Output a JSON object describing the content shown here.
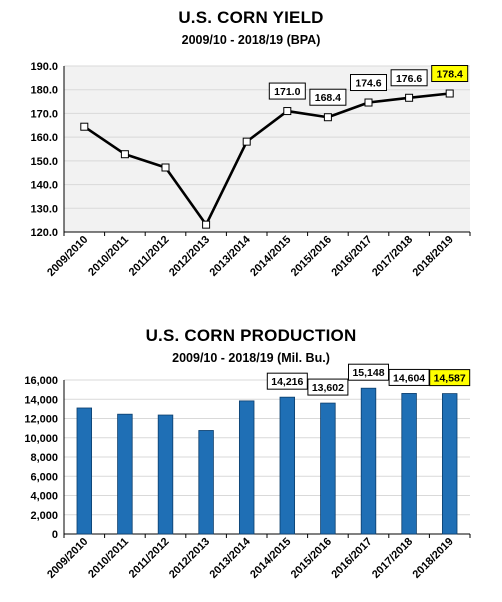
{
  "chart_data": [
    {
      "type": "line",
      "title": "U.S. CORN YIELD",
      "subtitle": "2009/10 - 2018/19 (BPA)",
      "categories": [
        "2009/2010",
        "2010/2011",
        "2011/2012",
        "2012/2013",
        "2013/2014",
        "2014/2015",
        "2015/2016",
        "2016/2017",
        "2017/2018",
        "2018/2019"
      ],
      "series": [
        {
          "values": [
            164.4,
            152.8,
            147.2,
            123.1,
            158.1,
            171.0,
            168.4,
            174.6,
            176.6,
            178.4
          ]
        }
      ],
      "yticks": [
        "120.0",
        "130.0",
        "140.0",
        "150.0",
        "160.0",
        "170.0",
        "180.0",
        "190.0"
      ],
      "ylim": [
        120,
        190
      ],
      "grid": true,
      "data_labels": [
        null,
        null,
        null,
        null,
        null,
        "171.0",
        "168.4",
        "174.6",
        "176.6",
        "178.4"
      ],
      "highlight_index": 9,
      "colors": {
        "line": "#000000",
        "plot_bg": "#f2f2f2",
        "grid": "#d9d9d9",
        "highlight": "#ffff00"
      }
    },
    {
      "type": "bar",
      "title": "U.S. CORN PRODUCTION",
      "subtitle": "2009/10 - 2018/19 (Mil. Bu.)",
      "categories": [
        "2009/2010",
        "2010/2011",
        "2011/2012",
        "2012/2013",
        "2013/2014",
        "2014/2015",
        "2015/2016",
        "2016/2017",
        "2017/2018",
        "2018/2019"
      ],
      "series": [
        {
          "values": [
            13092,
            12447,
            12360,
            10755,
            13829,
            14216,
            13602,
            15148,
            14604,
            14587
          ]
        }
      ],
      "yticks": [
        "0",
        "2,000",
        "4,000",
        "6,000",
        "8,000",
        "10,000",
        "12,000",
        "14,000",
        "16,000"
      ],
      "ylim": [
        0,
        16000
      ],
      "grid": true,
      "data_labels": [
        null,
        null,
        null,
        null,
        null,
        "14,216",
        "13,602",
        "15,148",
        "14,604",
        "14,587"
      ],
      "highlight_index": 9,
      "colors": {
        "bar": "#1f6fb5",
        "bar_edge": "#0b3d6b",
        "grid": "#d9d9d9",
        "highlight": "#ffff00"
      }
    }
  ]
}
